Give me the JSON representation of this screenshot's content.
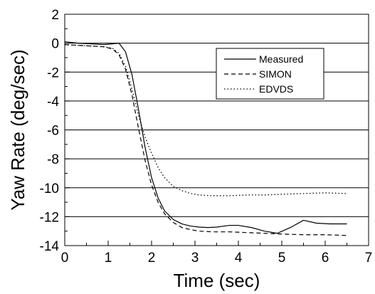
{
  "chart_data": {
    "type": "line",
    "title": "",
    "xlabel": "Time (sec)",
    "ylabel": "Yaw Rate (deg/sec)",
    "xlim": [
      0,
      7
    ],
    "ylim": [
      -14,
      2
    ],
    "x_ticks": [
      "0",
      "1",
      "2",
      "3",
      "4",
      "5",
      "6",
      "7"
    ],
    "y_ticks": [
      "2",
      "0",
      "-2",
      "-4",
      "-6",
      "-8",
      "-10",
      "-12",
      "-14"
    ],
    "grid": "horizontal",
    "legend_position": "top-right",
    "series": [
      {
        "name": "Measured",
        "style": "solid",
        "x": [
          0,
          0.3,
          0.6,
          0.9,
          1.1,
          1.25,
          1.4,
          1.55,
          1.7,
          1.85,
          2.0,
          2.15,
          2.3,
          2.5,
          2.7,
          2.9,
          3.1,
          3.3,
          3.5,
          3.8,
          4.0,
          4.3,
          4.6,
          4.9,
          5.2,
          5.5,
          5.8,
          6.1,
          6.5
        ],
        "y": [
          0.1,
          0.0,
          -0.05,
          -0.1,
          -0.05,
          0.0,
          -0.6,
          -2.2,
          -4.6,
          -7.2,
          -9.3,
          -10.7,
          -11.6,
          -12.2,
          -12.5,
          -12.65,
          -12.72,
          -12.75,
          -12.72,
          -12.6,
          -12.6,
          -12.75,
          -13.0,
          -13.15,
          -12.75,
          -12.25,
          -12.45,
          -12.5,
          -12.5
        ]
      },
      {
        "name": "SIMON",
        "style": "dashed",
        "x": [
          0,
          0.3,
          0.6,
          0.9,
          1.1,
          1.25,
          1.4,
          1.55,
          1.7,
          1.85,
          2.0,
          2.15,
          2.3,
          2.5,
          2.7,
          2.9,
          3.1,
          3.4,
          3.8,
          4.2,
          4.6,
          5.0,
          5.5,
          6.0,
          6.5
        ],
        "y": [
          -0.1,
          -0.15,
          -0.2,
          -0.25,
          -0.4,
          -0.8,
          -1.8,
          -3.6,
          -5.9,
          -8.1,
          -9.8,
          -11.0,
          -11.8,
          -12.4,
          -12.75,
          -12.9,
          -13.0,
          -13.05,
          -13.05,
          -13.1,
          -13.15,
          -13.2,
          -13.25,
          -13.25,
          -13.3
        ]
      },
      {
        "name": "EDVDS",
        "style": "dotted",
        "x": [
          0,
          0.3,
          0.6,
          0.9,
          1.1,
          1.25,
          1.4,
          1.55,
          1.7,
          1.85,
          2.0,
          2.15,
          2.3,
          2.5,
          2.7,
          2.9,
          3.1,
          3.4,
          3.8,
          4.2,
          4.6,
          5.0,
          5.5,
          6.0,
          6.5
        ],
        "y": [
          -0.1,
          -0.15,
          -0.2,
          -0.25,
          -0.35,
          -0.7,
          -1.6,
          -3.2,
          -5.0,
          -6.5,
          -7.6,
          -8.6,
          -9.3,
          -9.9,
          -10.2,
          -10.4,
          -10.5,
          -10.55,
          -10.55,
          -10.5,
          -10.5,
          -10.45,
          -10.4,
          -10.35,
          -10.4
        ]
      }
    ]
  }
}
